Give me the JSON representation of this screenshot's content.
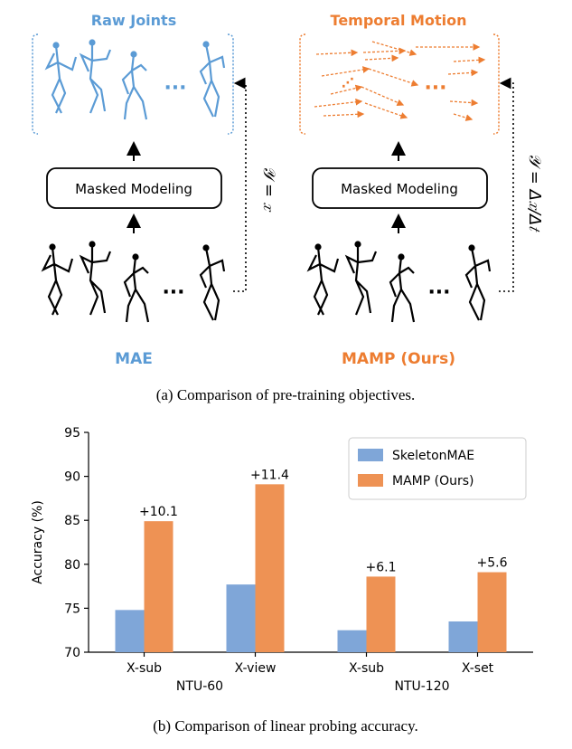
{
  "panel_a": {
    "left": {
      "title": "Raw Joints",
      "box_label": "Masked Modeling",
      "equation": "𝒴 = 𝑥",
      "method": "MAE",
      "ellipsis": "···"
    },
    "right": {
      "title": "Temporal Motion",
      "box_label": "Masked Modeling",
      "equation": "𝒴 = Δ𝑥/Δ𝑡",
      "method": "MAMP (Ours)",
      "ellipsis": "···"
    },
    "caption": "(a) Comparison of pre-training objectives.",
    "colors": {
      "blue": "#5b9bd5",
      "orange": "#ed7d31",
      "black": "#000000"
    }
  },
  "chart_data": {
    "type": "bar",
    "ylabel": "Accuracy (%)",
    "ylim": [
      70,
      95
    ],
    "yticks": [
      70,
      75,
      80,
      85,
      90,
      95
    ],
    "categories": [
      "X-sub",
      "X-view",
      "X-sub",
      "X-set"
    ],
    "groups": [
      "NTU-60",
      "NTU-120"
    ],
    "series": [
      {
        "name": "SkeletonMAE",
        "color": "#7fa6d8",
        "values": [
          74.8,
          77.7,
          72.5,
          73.5
        ]
      },
      {
        "name": "MAMP (Ours)",
        "color": "#ee9254",
        "values": [
          84.9,
          89.1,
          78.6,
          79.1
        ]
      }
    ],
    "annotations": [
      "+10.1",
      "+11.4",
      "+6.1",
      "+5.6"
    ],
    "legend_position": "top-right",
    "grid": false
  },
  "panel_b": {
    "caption": "(b) Comparison of linear probing accuracy."
  }
}
